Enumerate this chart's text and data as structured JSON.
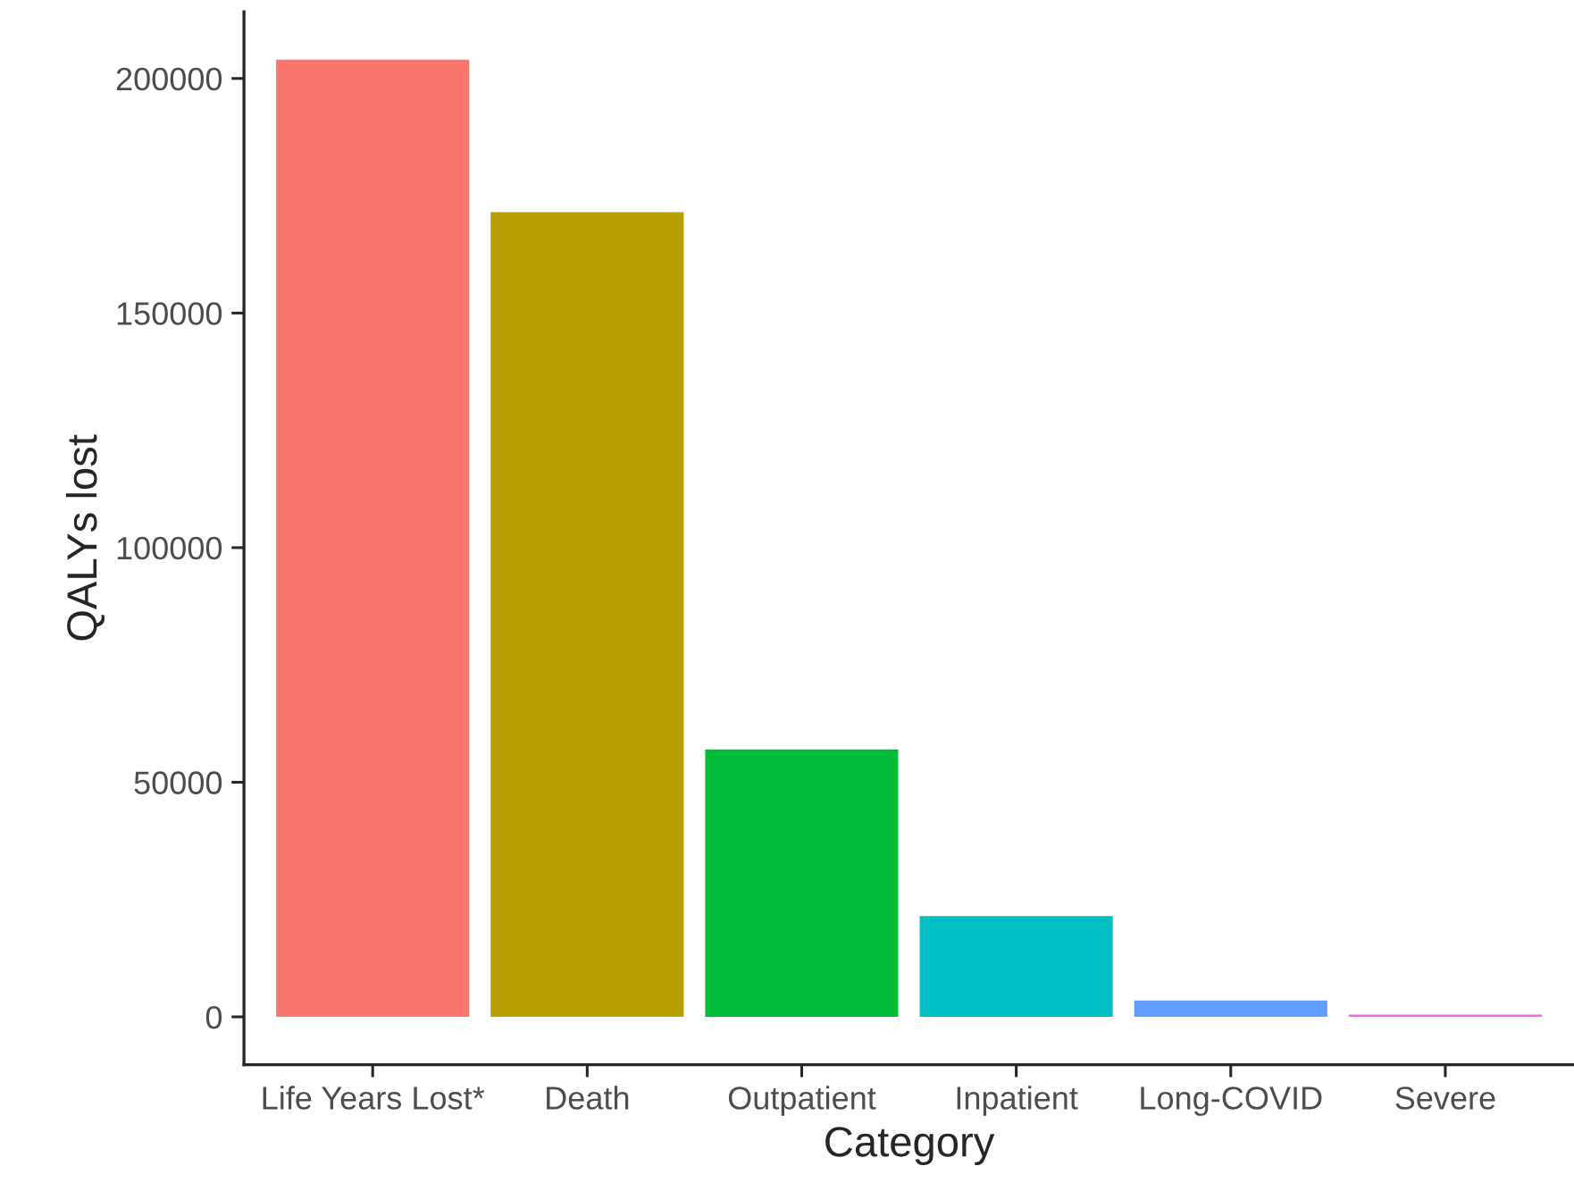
{
  "chart_data": {
    "type": "bar",
    "xlabel": "Category",
    "ylabel": "QALYs lost",
    "categories": [
      "Life Years Lost*",
      "Death",
      "Outpatient",
      "Inpatient",
      "Long-COVID",
      "Severe"
    ],
    "values": [
      204000,
      171500,
      57000,
      21500,
      3500,
      500
    ],
    "colors": [
      "#f8766d",
      "#b79f00",
      "#00ba38",
      "#00bfc4",
      "#619cff",
      "#f564e3"
    ],
    "ylim": [
      -10200,
      214200
    ],
    "yticks": [
      0,
      50000,
      100000,
      150000,
      200000
    ],
    "grid": false,
    "legend": false
  }
}
